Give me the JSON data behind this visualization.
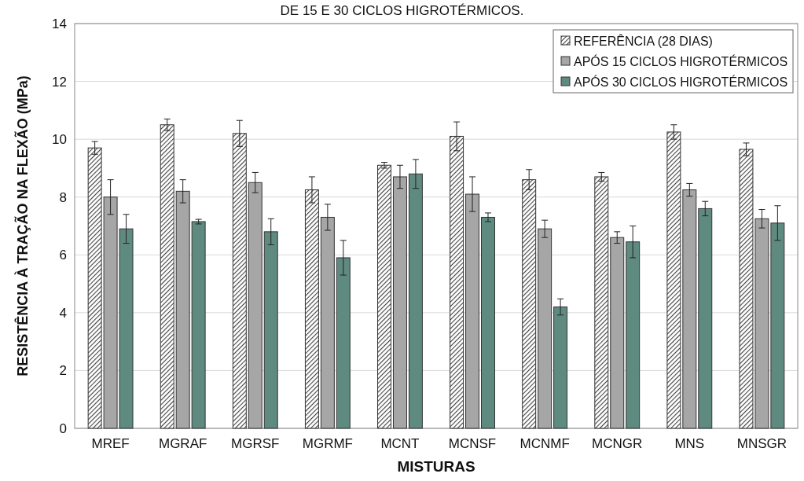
{
  "chart_data": {
    "type": "bar",
    "title": "DE 15 E 30 CICLOS HIGROTÉRMICOS.",
    "xlabel": "MISTURAS",
    "ylabel": "RESISTÊNCIA À TRAÇÃO NA FLEXÃO (MPa)",
    "categories": [
      "MREF",
      "MGRAF",
      "MGRSF",
      "MGRMF",
      "MCNT",
      "MCNSF",
      "MCNMF",
      "MCNGR",
      "MNS",
      "MNSGR"
    ],
    "series": [
      {
        "name": "REFERÊNCIA (28 DIAS)",
        "color": "#404040",
        "values": [
          9.7,
          10.5,
          10.2,
          8.25,
          9.1,
          10.1,
          8.6,
          8.7,
          10.25,
          9.65
        ],
        "errors": [
          0.22,
          0.2,
          0.45,
          0.45,
          0.1,
          0.5,
          0.35,
          0.15,
          0.25,
          0.22
        ]
      },
      {
        "name": "APÓS 15 CICLOS HIGROTÉRMICOS",
        "color": "#a6a6a6",
        "values": [
          8.0,
          8.2,
          8.5,
          7.3,
          8.7,
          8.1,
          6.9,
          6.6,
          8.25,
          7.25
        ],
        "errors": [
          0.6,
          0.4,
          0.35,
          0.45,
          0.4,
          0.6,
          0.3,
          0.2,
          0.22,
          0.32
        ]
      },
      {
        "name": "APÓS 30 CICLOS HIGROTÉRMICOS",
        "color": "#5f8a80",
        "values": [
          6.9,
          7.15,
          6.8,
          5.9,
          8.8,
          7.3,
          4.2,
          6.45,
          7.6,
          7.1
        ],
        "errors": [
          0.5,
          0.08,
          0.45,
          0.6,
          0.5,
          0.15,
          0.28,
          0.55,
          0.25,
          0.6
        ]
      }
    ],
    "ylim": [
      0,
      14
    ],
    "yticks": [
      0,
      2,
      4,
      6,
      8,
      10,
      12,
      14
    ],
    "grid": "y",
    "legend": "top right"
  }
}
